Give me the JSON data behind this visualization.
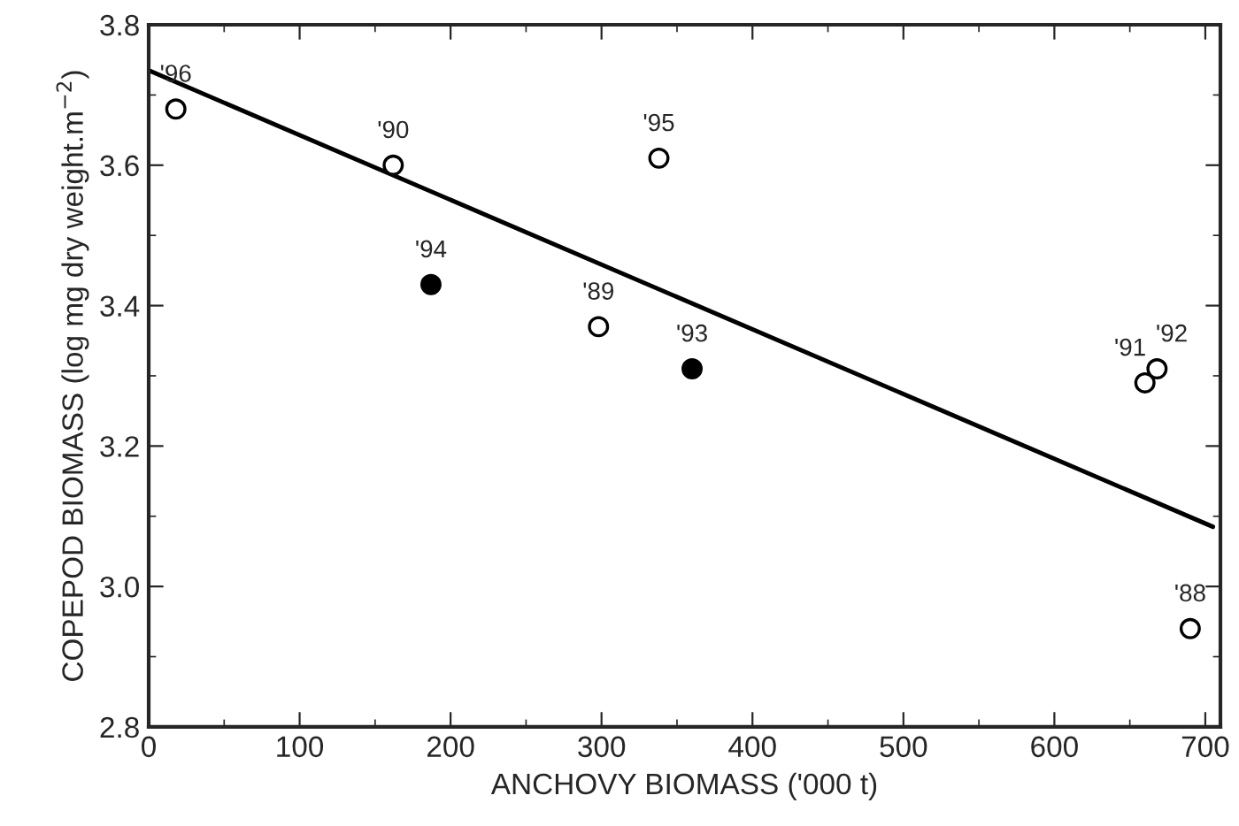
{
  "chart_data": {
    "type": "scatter",
    "xlabel": "ANCHOVY BIOMASS ('000 t)",
    "ylabel": "COPEPOD BIOMASS (log mg dry weight.m$^{−2}$)",
    "xlim": [
      0,
      710
    ],
    "xticks": [
      0,
      100,
      200,
      300,
      400,
      500,
      600,
      700
    ],
    "ylim": [
      2.8,
      3.8
    ],
    "yticks": [
      2.8,
      {
        "value": 3.0,
        "label": "3.0"
      },
      3.2,
      3.4,
      3.6,
      3.8
    ],
    "grid": false,
    "series": [
      {
        "marker": "circle",
        "color": "#ffffff",
        "x": [
          18,
          162,
          298,
          338,
          660,
          668,
          690
        ],
        "values": [
          3.68,
          3.6,
          3.37,
          3.61,
          3.29,
          3.31,
          2.94
        ]
      },
      {
        "marker": "circle",
        "color": "#000000",
        "x": [
          187,
          360
        ],
        "values": [
          3.43,
          3.31
        ]
      },
      {
        "type": "line",
        "marker": "none",
        "color": "#000000",
        "x": [
          0,
          705
        ],
        "values": [
          3.735,
          3.085
        ]
      }
    ],
    "annotations": [
      {
        "text": "'96",
        "x": 18,
        "y": 3.68
      },
      {
        "text": "'90",
        "x": 162,
        "y": 3.6
      },
      {
        "text": "'94",
        "x": 187,
        "y": 3.43
      },
      {
        "text": "'89",
        "x": 298,
        "y": 3.37
      },
      {
        "text": "'95",
        "x": 338,
        "y": 3.61
      },
      {
        "text": "'93",
        "x": 360,
        "y": 3.31
      },
      {
        "text": "'91",
        "x": 660,
        "y": 3.29
      },
      {
        "text": "'92",
        "x": 668,
        "y": 3.31
      },
      {
        "text": "'88",
        "x": 690,
        "y": 2.94
      }
    ]
  }
}
